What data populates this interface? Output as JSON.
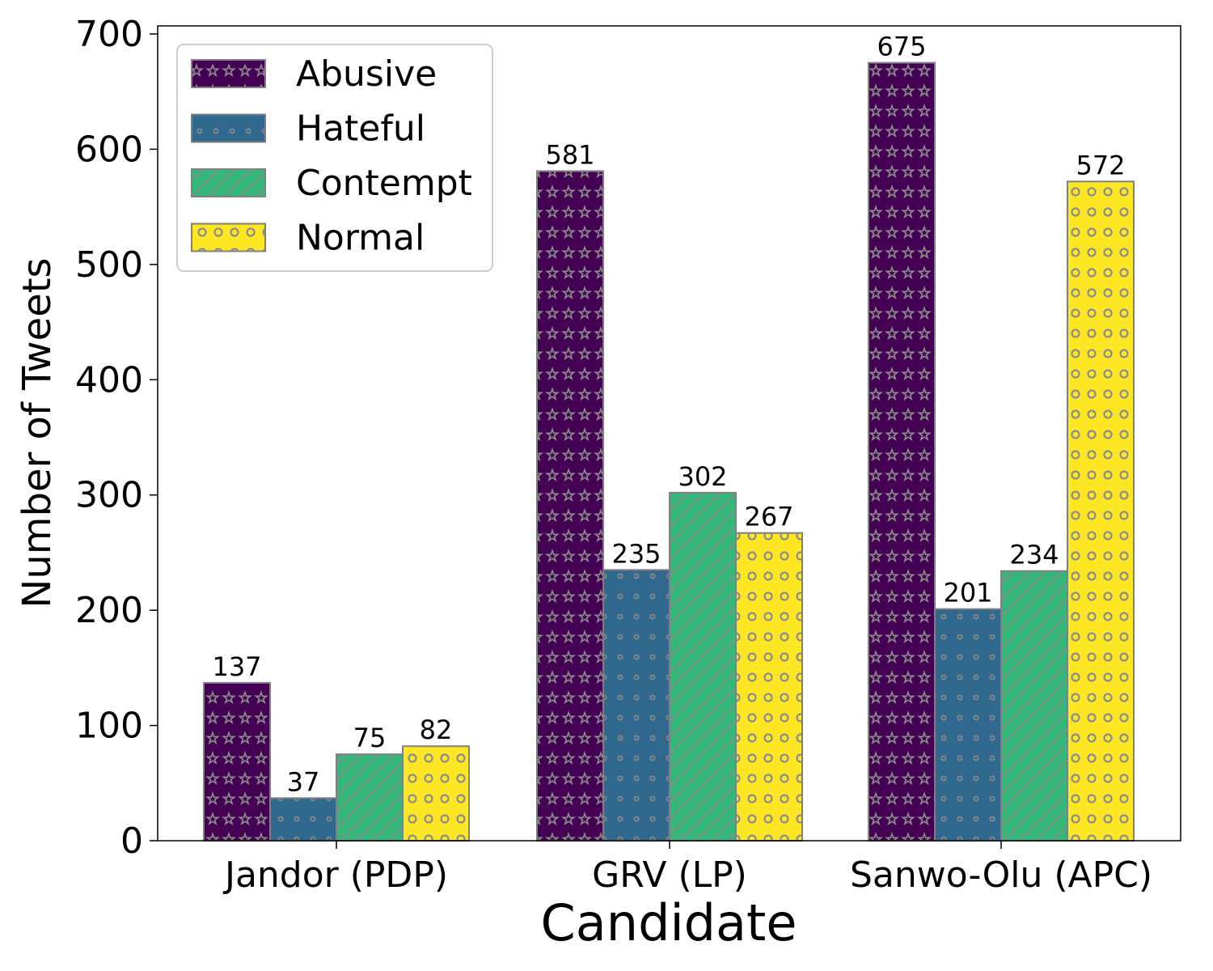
{
  "chart_data": {
    "type": "bar",
    "xlabel": "Candidate",
    "ylabel": "Number of Tweets",
    "ylim": [
      0,
      707
    ],
    "yticks": [
      0,
      100,
      200,
      300,
      400,
      500,
      600,
      700
    ],
    "categories": [
      "Jandor (PDP)",
      "GRV (LP)",
      "Sanwo-Olu (APC)"
    ],
    "legend_position": "top-left",
    "grid": false,
    "series": [
      {
        "name": "Abusive",
        "values": [
          137,
          581,
          675
        ],
        "color": "#440154",
        "pattern": "stars"
      },
      {
        "name": "Hateful",
        "values": [
          37,
          235,
          201
        ],
        "color": "#31688e",
        "pattern": "small-dots"
      },
      {
        "name": "Contempt",
        "values": [
          75,
          302,
          234
        ],
        "color": "#35b779",
        "pattern": "diagonal-hatch"
      },
      {
        "name": "Normal",
        "values": [
          82,
          267,
          572
        ],
        "color": "#fde725",
        "pattern": "rings"
      }
    ]
  }
}
